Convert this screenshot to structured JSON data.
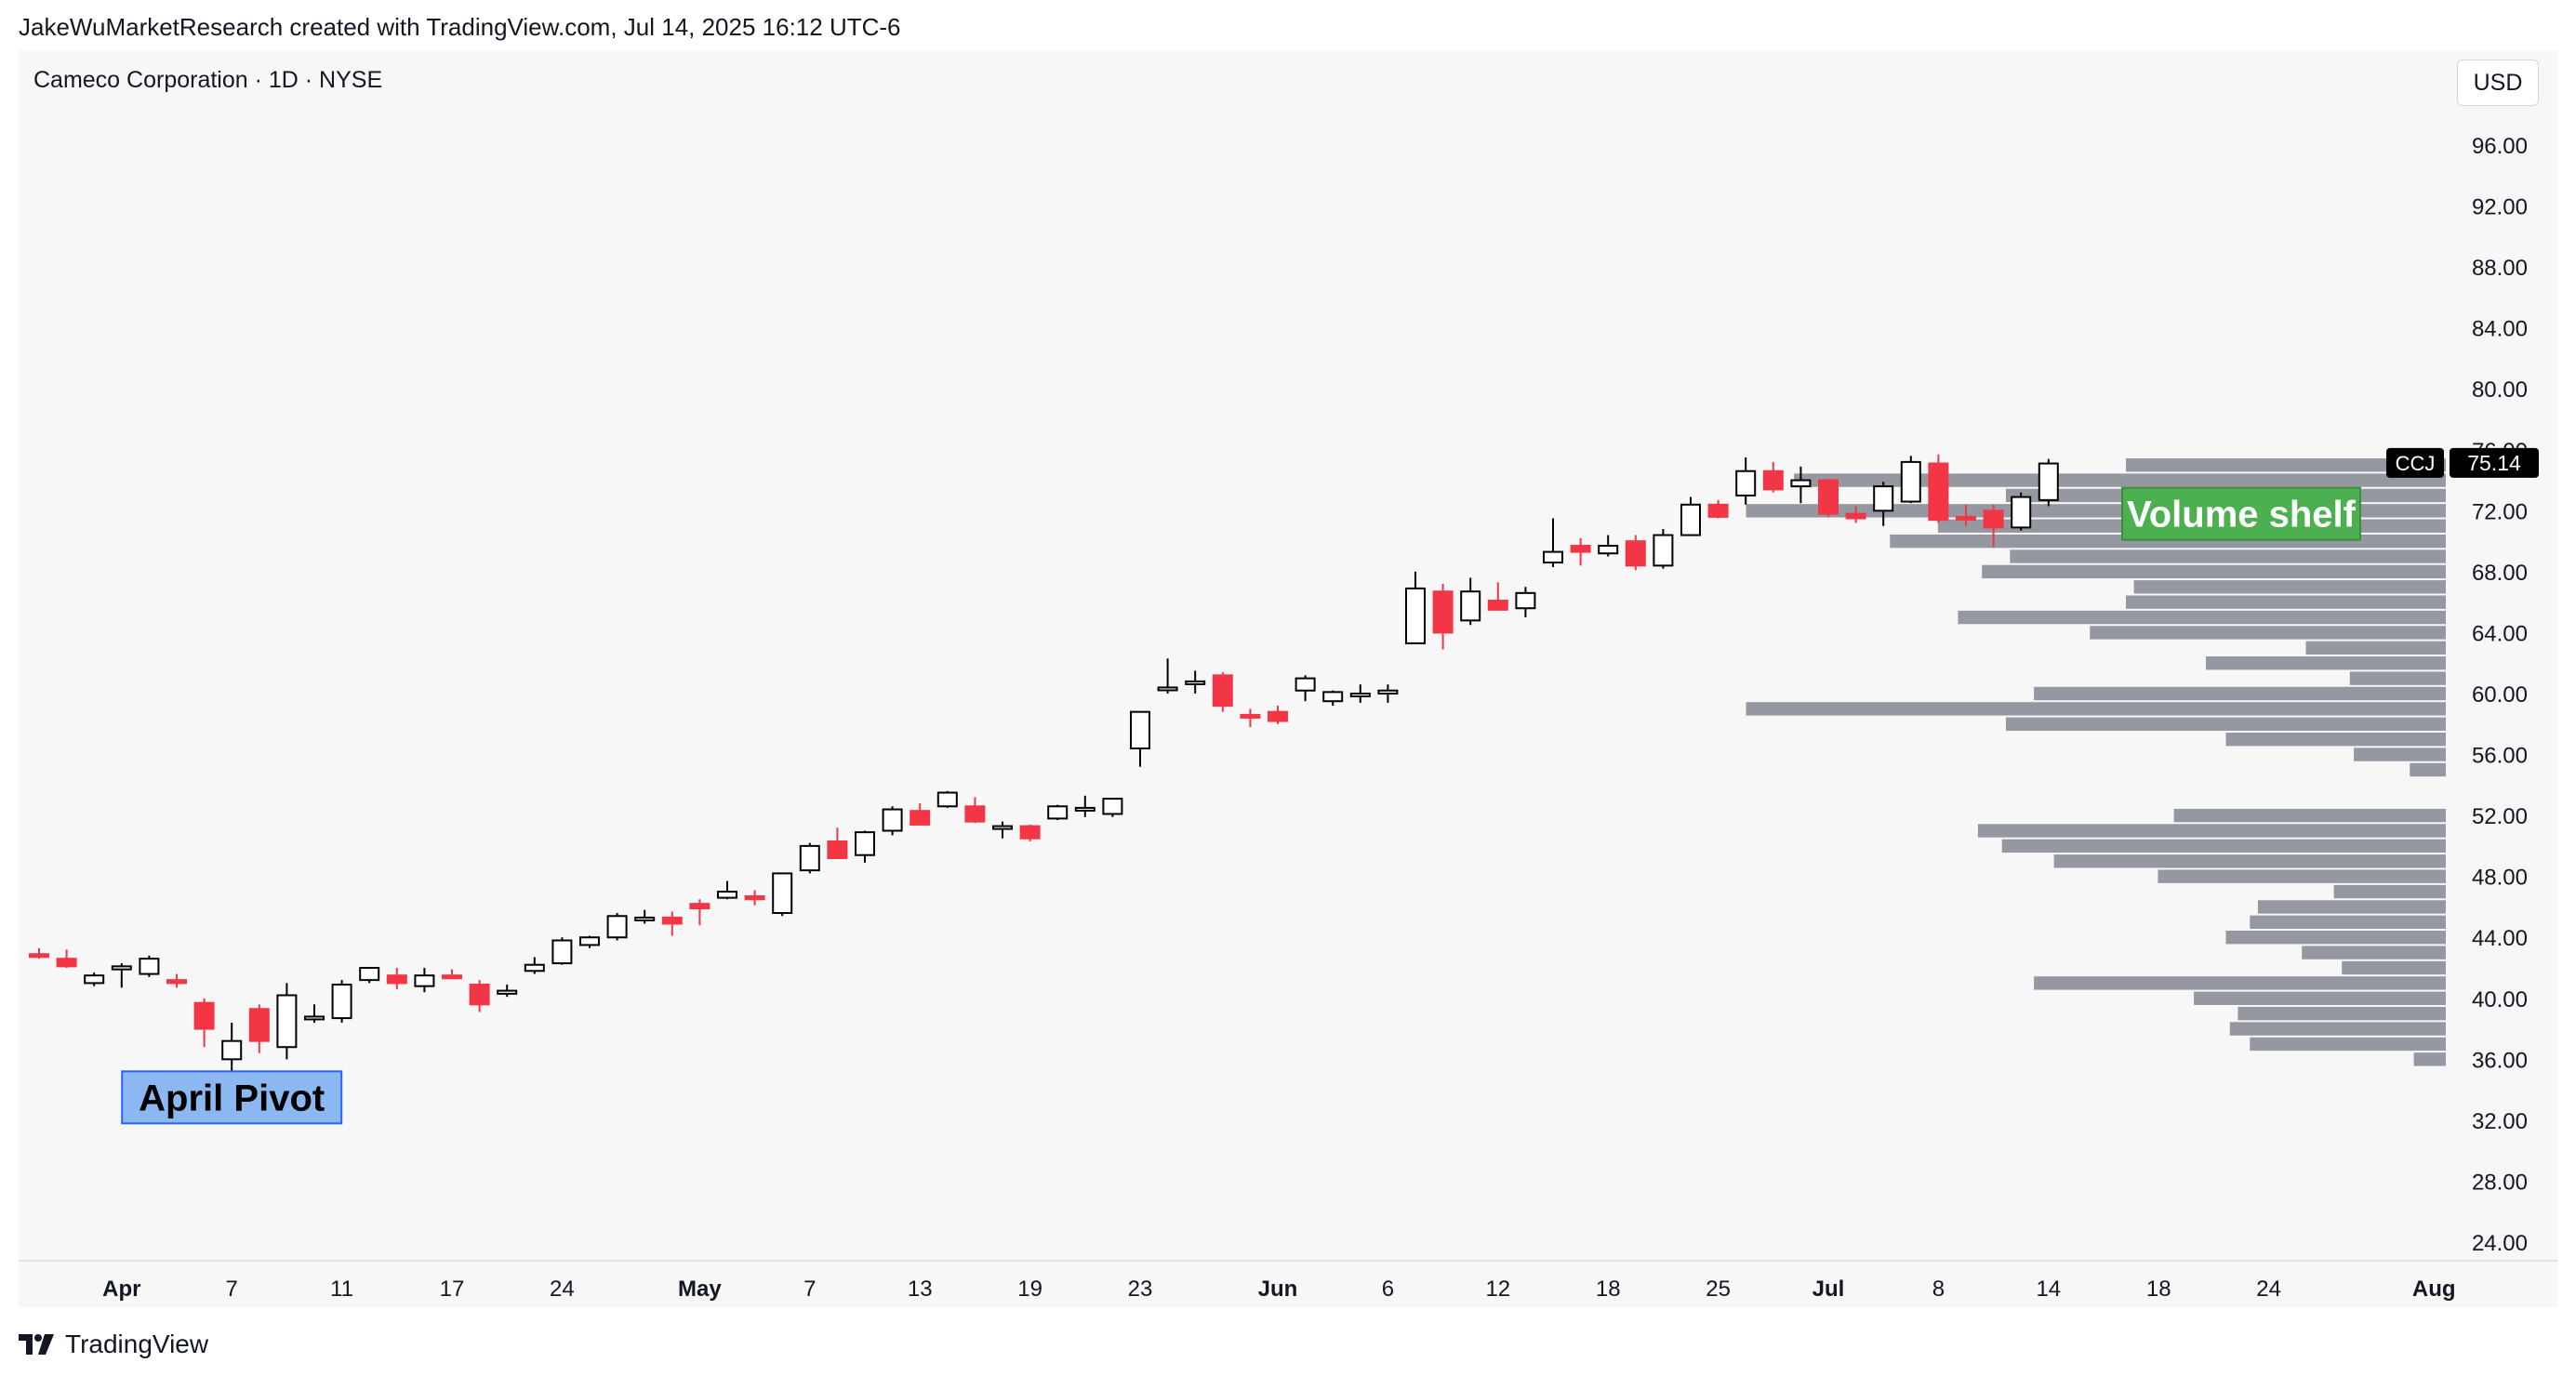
{
  "header": {
    "attribution": "JakeWuMarketResearch created with TradingView.com, Jul 14, 2025 16:12 UTC-6",
    "symbol_title": "Cameco Corporation · 1D · NYSE",
    "currency": "USD"
  },
  "footer": {
    "brand": "TradingView"
  },
  "colors": {
    "up": "#000000",
    "down": "#f23645",
    "volume": "#9598a1",
    "pivot_label_bg": "#8cb8f2",
    "shelf_label_bg": "#4caf50"
  },
  "chart_data": {
    "type": "candlestick",
    "title": "Cameco Corporation · 1D · NYSE",
    "ticker": "CCJ",
    "last_price": "75.14",
    "ylim": [
      22.5,
      100
    ],
    "y_ticks": [
      "24.00",
      "28.00",
      "32.00",
      "36.00",
      "40.00",
      "44.00",
      "48.00",
      "52.00",
      "56.00",
      "60.00",
      "64.00",
      "68.00",
      "72.00",
      "76.00",
      "80.00",
      "84.00",
      "88.00",
      "92.00",
      "96.00"
    ],
    "x_ticks": [
      {
        "label": "Apr",
        "i": 3,
        "bold": true
      },
      {
        "label": "7",
        "i": 7
      },
      {
        "label": "11",
        "i": 11
      },
      {
        "label": "17",
        "i": 15
      },
      {
        "label": "24",
        "i": 19
      },
      {
        "label": "May",
        "i": 24,
        "bold": true
      },
      {
        "label": "7",
        "i": 28
      },
      {
        "label": "13",
        "i": 32
      },
      {
        "label": "19",
        "i": 36
      },
      {
        "label": "23",
        "i": 40
      },
      {
        "label": "Jun",
        "i": 45,
        "bold": true
      },
      {
        "label": "6",
        "i": 49
      },
      {
        "label": "12",
        "i": 53
      },
      {
        "label": "18",
        "i": 57
      },
      {
        "label": "25",
        "i": 61
      },
      {
        "label": "Jul",
        "i": 65,
        "bold": true
      },
      {
        "label": "8",
        "i": 69
      },
      {
        "label": "14",
        "i": 73
      },
      {
        "label": "18",
        "i": 77
      },
      {
        "label": "24",
        "i": 81
      },
      {
        "label": "Aug",
        "i": 87,
        "bold": true
      }
    ],
    "candles": [
      [
        42.9,
        43.3,
        42.6,
        42.8
      ],
      [
        42.6,
        43.2,
        42.0,
        42.1
      ],
      [
        41.0,
        41.7,
        40.8,
        41.5
      ],
      [
        41.9,
        42.3,
        40.7,
        42.1
      ],
      [
        41.6,
        42.8,
        41.4,
        42.6
      ],
      [
        41.2,
        41.6,
        40.7,
        41.0
      ],
      [
        39.7,
        40.0,
        36.8,
        38.0
      ],
      [
        36.0,
        38.4,
        35.2,
        37.2
      ],
      [
        39.3,
        39.6,
        36.4,
        37.2
      ],
      [
        36.8,
        41.0,
        36.0,
        40.2
      ],
      [
        38.8,
        39.6,
        38.4,
        38.8
      ],
      [
        38.7,
        41.2,
        38.4,
        40.9
      ],
      [
        41.2,
        41.8,
        41.0,
        42.0
      ],
      [
        41.5,
        42.0,
        40.6,
        41.0
      ],
      [
        40.8,
        42.0,
        40.4,
        41.5
      ],
      [
        41.5,
        41.9,
        41.3,
        41.4
      ],
      [
        40.9,
        41.2,
        39.1,
        39.6
      ],
      [
        40.3,
        40.9,
        40.1,
        40.5
      ],
      [
        41.8,
        42.7,
        41.6,
        42.2
      ],
      [
        42.3,
        44.0,
        42.2,
        43.8
      ],
      [
        43.5,
        44.1,
        43.3,
        44.0
      ],
      [
        44.0,
        45.6,
        43.8,
        45.4
      ],
      [
        45.2,
        45.8,
        44.9,
        45.3
      ],
      [
        45.3,
        45.7,
        44.1,
        44.9
      ],
      [
        46.2,
        46.5,
        44.8,
        45.9
      ],
      [
        46.6,
        47.7,
        46.5,
        47.0
      ],
      [
        46.7,
        47.1,
        46.1,
        46.5
      ],
      [
        45.6,
        48.2,
        45.4,
        48.2
      ],
      [
        48.4,
        50.2,
        48.2,
        50.0
      ],
      [
        50.3,
        51.2,
        49.2,
        49.2
      ],
      [
        49.4,
        51.0,
        48.9,
        50.9
      ],
      [
        51.0,
        52.6,
        50.7,
        52.4
      ],
      [
        52.3,
        52.8,
        51.4,
        51.4
      ],
      [
        52.6,
        53.6,
        52.5,
        53.5
      ],
      [
        52.6,
        53.2,
        51.5,
        51.6
      ],
      [
        51.2,
        51.6,
        50.5,
        51.3
      ],
      [
        51.3,
        51.4,
        50.3,
        50.5
      ],
      [
        51.8,
        52.7,
        51.7,
        52.6
      ],
      [
        52.4,
        53.3,
        51.9,
        52.5
      ],
      [
        52.1,
        53.1,
        51.9,
        53.1
      ],
      [
        56.4,
        58.8,
        55.2,
        58.8
      ],
      [
        60.4,
        62.3,
        60.0,
        60.4
      ],
      [
        60.8,
        61.5,
        60.0,
        60.8
      ],
      [
        61.2,
        61.4,
        58.8,
        59.2
      ],
      [
        58.6,
        59.0,
        57.8,
        58.5
      ],
      [
        58.8,
        59.2,
        58.0,
        58.2
      ],
      [
        60.2,
        61.2,
        59.5,
        61.0
      ],
      [
        59.5,
        60.2,
        59.2,
        60.1
      ],
      [
        59.9,
        60.6,
        59.4,
        60.0
      ],
      [
        60.0,
        60.6,
        59.4,
        60.2
      ],
      [
        63.3,
        68.0,
        63.3,
        66.9
      ],
      [
        66.7,
        67.2,
        62.9,
        64.0
      ],
      [
        64.8,
        67.6,
        64.5,
        66.7
      ],
      [
        66.1,
        67.3,
        65.5,
        65.5
      ],
      [
        65.6,
        67.0,
        65.0,
        66.6
      ],
      [
        68.6,
        71.5,
        68.3,
        69.3
      ],
      [
        69.7,
        70.2,
        68.4,
        69.3
      ],
      [
        69.2,
        70.4,
        69.0,
        69.7
      ],
      [
        70.0,
        70.4,
        68.1,
        68.4
      ],
      [
        68.4,
        70.8,
        68.2,
        70.4
      ],
      [
        70.4,
        72.9,
        70.4,
        72.4
      ],
      [
        72.4,
        72.7,
        71.5,
        71.6
      ],
      [
        73.0,
        75.5,
        72.4,
        74.6
      ],
      [
        74.6,
        75.2,
        73.2,
        73.4
      ],
      [
        73.6,
        74.9,
        72.5,
        74.0
      ],
      [
        74.0,
        74.1,
        71.6,
        71.8
      ],
      [
        71.8,
        72.3,
        71.2,
        71.5
      ],
      [
        72.0,
        73.9,
        71.0,
        73.6
      ],
      [
        72.6,
        75.6,
        72.5,
        75.2
      ],
      [
        75.1,
        75.7,
        71.2,
        71.4
      ],
      [
        71.6,
        72.4,
        71.0,
        71.5
      ],
      [
        72.0,
        72.4,
        69.6,
        70.9
      ],
      [
        70.9,
        73.2,
        70.7,
        72.9
      ],
      [
        72.7,
        75.4,
        72.3,
        75.1
      ]
    ],
    "volume_profile": [
      [
        35.5,
        36.5,
        8
      ],
      [
        36.5,
        37.5,
        49
      ],
      [
        37.5,
        38.5,
        54
      ],
      [
        38.5,
        39.5,
        52
      ],
      [
        39.5,
        40.5,
        63
      ],
      [
        40.5,
        41.5,
        103
      ],
      [
        41.5,
        42.5,
        26
      ],
      [
        42.5,
        43.5,
        36
      ],
      [
        43.5,
        44.5,
        55
      ],
      [
        44.5,
        45.5,
        49
      ],
      [
        45.5,
        46.5,
        47
      ],
      [
        46.5,
        47.5,
        28
      ],
      [
        47.5,
        48.5,
        72
      ],
      [
        48.5,
        49.5,
        98
      ],
      [
        49.5,
        50.5,
        111
      ],
      [
        50.5,
        51.5,
        117
      ],
      [
        51.5,
        52.5,
        68
      ],
      [
        54.5,
        55.5,
        9
      ],
      [
        55.5,
        56.5,
        23
      ],
      [
        56.5,
        57.5,
        55
      ],
      [
        57.5,
        58.5,
        110
      ],
      [
        58.5,
        59.5,
        175
      ],
      [
        59.5,
        60.5,
        103
      ],
      [
        60.5,
        61.5,
        24
      ],
      [
        61.5,
        62.5,
        60
      ],
      [
        62.5,
        63.5,
        35
      ],
      [
        63.5,
        64.5,
        89
      ],
      [
        64.5,
        65.5,
        122
      ],
      [
        65.5,
        66.5,
        80
      ],
      [
        66.5,
        67.5,
        78
      ],
      [
        67.5,
        68.5,
        116
      ],
      [
        68.5,
        69.5,
        109
      ],
      [
        69.5,
        70.5,
        139
      ],
      [
        70.5,
        71.5,
        127
      ],
      [
        71.5,
        72.5,
        175
      ],
      [
        72.5,
        73.5,
        110
      ],
      [
        73.5,
        74.5,
        163
      ],
      [
        74.5,
        75.5,
        80
      ]
    ],
    "annotations": [
      {
        "text": "April Pivot",
        "candle": 7,
        "price": 33.5,
        "bg": "#8cb8f2",
        "fg": "#000000"
      },
      {
        "text": "Volume shelf",
        "candle": 80,
        "price": 71.8,
        "bg": "#4caf50",
        "fg": "#ffffff"
      }
    ]
  }
}
